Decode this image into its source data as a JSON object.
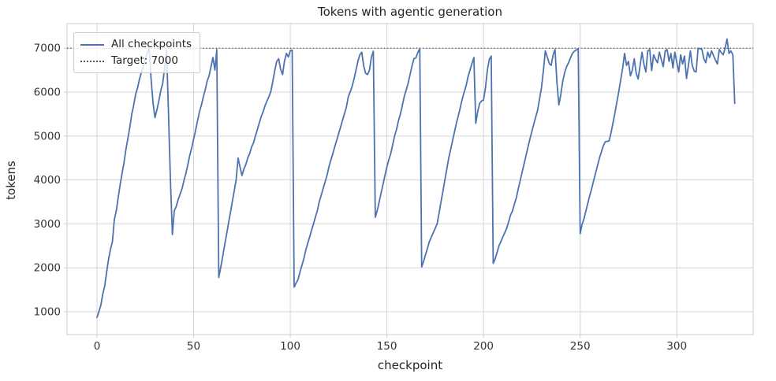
{
  "figure": {
    "title": "Tokens with agentic generation",
    "xlabel": "checkpoint",
    "ylabel": "tokens"
  },
  "legend": {
    "items": [
      {
        "label": "All checkpoints",
        "style": "solid",
        "color": "#4C72B0"
      },
      {
        "label": "Target: 7000",
        "style": "dotted",
        "color": "#555555"
      }
    ],
    "position": "upper left"
  },
  "colors": {
    "series_blue": "#4C72B0",
    "target_gray": "#555555",
    "grid": "#d4d4d4",
    "spine": "#cccccc",
    "text": "#262626",
    "tick_text": "#333333",
    "background": "#ffffff"
  },
  "chart_data": {
    "type": "line",
    "title": "Tokens with agentic generation",
    "xlabel": "checkpoint",
    "ylabel": "tokens",
    "grid": true,
    "legend_position": "upper left",
    "x_ticks": [
      0,
      50,
      100,
      150,
      200,
      250,
      300
    ],
    "y_ticks": [
      1000,
      2000,
      3000,
      4000,
      5000,
      6000,
      7000
    ],
    "xlim": [
      -15.5,
      339.5
    ],
    "ylim": [
      480,
      7560
    ],
    "target": {
      "label": "Target: 7000",
      "value": 7000
    },
    "series": [
      {
        "name": "All checkpoints",
        "color": "#4C72B0",
        "x_start": 0,
        "x_step": 1,
        "values": [
          870,
          1000,
          1150,
          1400,
          1590,
          1900,
          2200,
          2420,
          2600,
          3100,
          3300,
          3600,
          3900,
          4150,
          4400,
          4700,
          4950,
          5200,
          5500,
          5700,
          5950,
          6100,
          6300,
          6450,
          6600,
          6750,
          6900,
          6990,
          6300,
          5750,
          5420,
          5600,
          5800,
          6040,
          6200,
          6550,
          6950,
          5500,
          4000,
          2760,
          3300,
          3400,
          3550,
          3680,
          3800,
          3990,
          4150,
          4350,
          4560,
          4730,
          4930,
          5130,
          5340,
          5550,
          5700,
          5890,
          6050,
          6250,
          6370,
          6580,
          6790,
          6500,
          6970,
          1780,
          2000,
          2250,
          2500,
          2750,
          3000,
          3250,
          3500,
          3750,
          4000,
          4500,
          4300,
          4100,
          4250,
          4350,
          4500,
          4600,
          4750,
          4850,
          5000,
          5150,
          5300,
          5450,
          5550,
          5700,
          5800,
          5900,
          6020,
          6250,
          6500,
          6700,
          6760,
          6520,
          6400,
          6700,
          6880,
          6800,
          6940,
          6960,
          1560,
          1650,
          1730,
          1900,
          2050,
          2200,
          2400,
          2550,
          2700,
          2850,
          3000,
          3150,
          3300,
          3500,
          3650,
          3800,
          3950,
          4100,
          4300,
          4450,
          4600,
          4750,
          4900,
          5050,
          5200,
          5350,
          5500,
          5650,
          5890,
          6000,
          6130,
          6300,
          6500,
          6700,
          6850,
          6910,
          6600,
          6430,
          6400,
          6500,
          6800,
          6930,
          3150,
          3300,
          3500,
          3700,
          3900,
          4100,
          4300,
          4460,
          4600,
          4800,
          5000,
          5150,
          5350,
          5500,
          5700,
          5900,
          6050,
          6200,
          6400,
          6600,
          6760,
          6780,
          6900,
          6990,
          2020,
          2150,
          2300,
          2450,
          2600,
          2700,
          2800,
          2900,
          3000,
          3250,
          3500,
          3750,
          4000,
          4250,
          4500,
          4700,
          4900,
          5100,
          5300,
          5470,
          5650,
          5850,
          6000,
          6150,
          6350,
          6500,
          6650,
          6790,
          5290,
          5560,
          5740,
          5800,
          5820,
          6100,
          6500,
          6750,
          6820,
          2100,
          2200,
          2350,
          2500,
          2600,
          2700,
          2800,
          2900,
          3050,
          3200,
          3300,
          3450,
          3600,
          3800,
          3990,
          4180,
          4370,
          4560,
          4750,
          4930,
          5100,
          5270,
          5430,
          5590,
          5850,
          6100,
          6500,
          6940,
          6800,
          6650,
          6610,
          6850,
          6970,
          6200,
          5710,
          5950,
          6250,
          6450,
          6580,
          6670,
          6780,
          6880,
          6930,
          6960,
          6990,
          2780,
          2990,
          3120,
          3300,
          3480,
          3650,
          3810,
          3990,
          4160,
          4330,
          4500,
          4640,
          4780,
          4870,
          4880,
          4890,
          5080,
          5300,
          5530,
          5770,
          6020,
          6280,
          6550,
          6880,
          6610,
          6700,
          6370,
          6500,
          6760,
          6430,
          6300,
          6600,
          6910,
          6640,
          6460,
          6940,
          6970,
          6490,
          6850,
          6750,
          6670,
          6910,
          6740,
          6580,
          6940,
          6970,
          6700,
          6880,
          6550,
          6910,
          6680,
          6460,
          6850,
          6640,
          6820,
          6310,
          6600,
          6940,
          6610,
          6480,
          6460,
          7000,
          6990,
          6970,
          6760,
          6670,
          6910,
          6790,
          6940,
          6830,
          6730,
          6640,
          6970,
          6900,
          6850,
          7000,
          7210,
          6880,
          6940,
          6850,
          5740
        ]
      }
    ]
  }
}
